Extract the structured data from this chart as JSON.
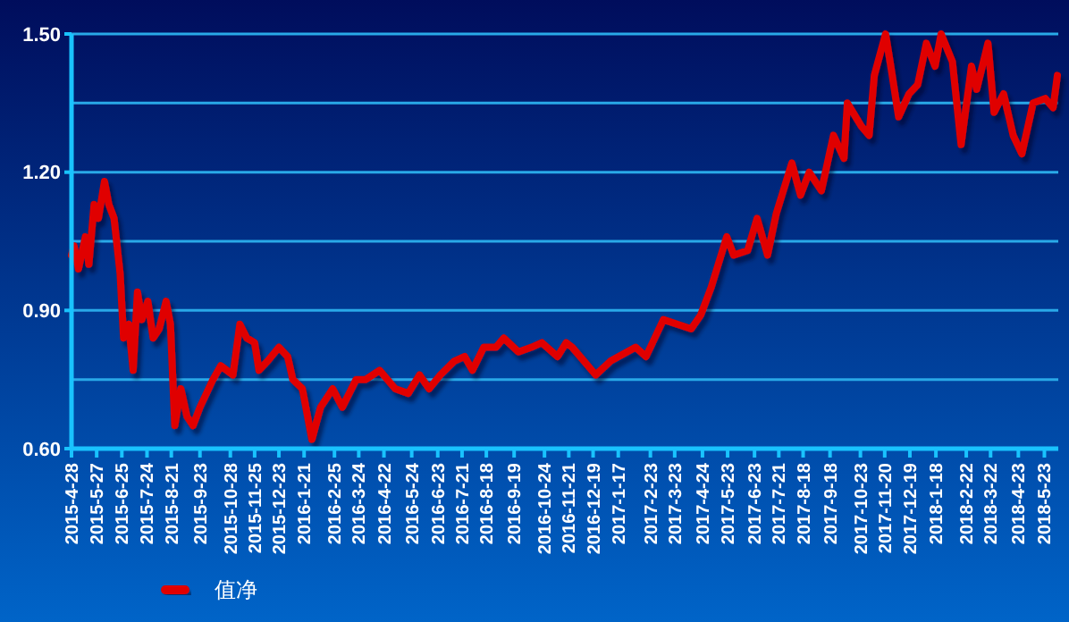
{
  "chart_data": {
    "type": "line",
    "legend": "bottom left",
    "grid": "y",
    "line_style": "solid",
    "marker": "none",
    "xlim": [
      "2015-04-28",
      "2018-06-08"
    ],
    "ylim": [
      0.6,
      1.5
    ],
    "yticks": [
      {
        "value": 0.6,
        "label": "0.60"
      },
      {
        "value": 0.75,
        "label": null
      },
      {
        "value": 0.9,
        "label": "0.90"
      },
      {
        "value": 1.05,
        "label": null
      },
      {
        "value": 1.2,
        "label": "1.20"
      },
      {
        "value": 1.35,
        "label": null
      },
      {
        "value": 1.5,
        "label": "1.50"
      }
    ],
    "xticks": [
      {
        "value": "2015-04-28",
        "label": "2015-4-28"
      },
      {
        "value": "2015-05-27",
        "label": "2015-5-27"
      },
      {
        "value": "2015-06-25",
        "label": "2015-6-25"
      },
      {
        "value": "2015-07-24",
        "label": "2015-7-24"
      },
      {
        "value": "2015-08-21",
        "label": "2015-8-21"
      },
      {
        "value": "2015-09-23",
        "label": "2015-9-23"
      },
      {
        "value": "2015-10-28",
        "label": "2015-10-28"
      },
      {
        "value": "2015-11-25",
        "label": "2015-11-25"
      },
      {
        "value": "2015-12-23",
        "label": "2015-12-23"
      },
      {
        "value": "2016-01-21",
        "label": "2016-1-21"
      },
      {
        "value": "2016-02-25",
        "label": "2016-2-25"
      },
      {
        "value": "2016-03-24",
        "label": "2016-3-24"
      },
      {
        "value": "2016-04-22",
        "label": "2016-4-22"
      },
      {
        "value": "2016-05-24",
        "label": "2016-5-24"
      },
      {
        "value": "2016-06-23",
        "label": "2016-6-23"
      },
      {
        "value": "2016-07-21",
        "label": "2016-7-21"
      },
      {
        "value": "2016-08-18",
        "label": "2016-8-18"
      },
      {
        "value": "2016-09-19",
        "label": "2016-9-19"
      },
      {
        "value": "2016-10-24",
        "label": "2016-10-24"
      },
      {
        "value": "2016-11-21",
        "label": "2016-11-21"
      },
      {
        "value": "2016-12-19",
        "label": "2016-12-19"
      },
      {
        "value": "2017-01-17",
        "label": "2017-1-17"
      },
      {
        "value": "2017-02-23",
        "label": "2017-2-23"
      },
      {
        "value": "2017-03-23",
        "label": "2017-3-23"
      },
      {
        "value": "2017-04-24",
        "label": "2017-4-24"
      },
      {
        "value": "2017-05-23",
        "label": "2017-5-23"
      },
      {
        "value": "2017-06-23",
        "label": "2017-6-23"
      },
      {
        "value": "2017-07-21",
        "label": "2017-7-21"
      },
      {
        "value": "2017-08-18",
        "label": "2017-8-18"
      },
      {
        "value": "2017-09-18",
        "label": "2017-9-18"
      },
      {
        "value": "2017-10-23",
        "label": "2017-10-23"
      },
      {
        "value": "2017-11-20",
        "label": "2017-11-20"
      },
      {
        "value": "2017-12-19",
        "label": "2017-12-19"
      },
      {
        "value": "2018-01-18",
        "label": "2018-1-18"
      },
      {
        "value": "2018-02-22",
        "label": "2018-2-22"
      },
      {
        "value": "2018-03-22",
        "label": "2018-3-22"
      },
      {
        "value": "2018-04-23",
        "label": "2018-4-23"
      },
      {
        "value": "2018-05-23",
        "label": "2018-5-23"
      }
    ],
    "x": [
      "2015-04-28",
      "2015-05-01",
      "2015-05-06",
      "2015-05-14",
      "2015-05-18",
      "2015-05-24",
      "2015-05-29",
      "2015-06-05",
      "2015-06-10",
      "2015-06-16",
      "2015-06-23",
      "2015-06-27",
      "2015-07-03",
      "2015-07-08",
      "2015-07-13",
      "2015-07-18",
      "2015-07-25",
      "2015-07-31",
      "2015-08-07",
      "2015-08-15",
      "2015-08-20",
      "2015-08-25",
      "2015-09-01",
      "2015-09-08",
      "2015-09-15",
      "2015-09-23",
      "2015-10-08",
      "2015-10-17",
      "2015-10-31",
      "2015-11-08",
      "2015-11-16",
      "2015-11-25",
      "2015-11-30",
      "2015-12-10",
      "2015-12-23",
      "2016-01-02",
      "2016-01-08",
      "2016-01-19",
      "2016-01-30",
      "2016-02-09",
      "2016-02-23",
      "2016-03-05",
      "2016-03-21",
      "2016-04-01",
      "2016-04-17",
      "2016-05-05",
      "2016-05-20",
      "2016-06-02",
      "2016-06-13",
      "2016-06-26",
      "2016-07-12",
      "2016-07-24",
      "2016-08-02",
      "2016-08-15",
      "2016-08-29",
      "2016-09-07",
      "2016-09-24",
      "2016-10-09",
      "2016-10-21",
      "2016-11-08",
      "2016-11-18",
      "2016-11-25",
      "2016-12-22",
      "2017-01-08",
      "2017-02-06",
      "2017-02-18",
      "2017-03-10",
      "2017-04-11",
      "2017-04-22",
      "2017-05-04",
      "2017-05-22",
      "2017-05-30",
      "2017-06-15",
      "2017-06-26",
      "2017-07-08",
      "2017-07-18",
      "2017-08-05",
      "2017-08-15",
      "2017-08-25",
      "2017-09-08",
      "2017-09-22",
      "2017-10-04",
      "2017-10-08",
      "2017-10-24",
      "2017-11-02",
      "2017-11-08",
      "2017-11-21",
      "2017-11-27",
      "2017-12-06",
      "2017-12-18",
      "2017-12-28",
      "2018-01-07",
      "2018-01-17",
      "2018-01-24",
      "2018-02-06",
      "2018-02-16",
      "2018-02-28",
      "2018-03-06",
      "2018-03-19",
      "2018-03-26",
      "2018-04-06",
      "2018-04-17",
      "2018-04-27",
      "2018-05-10",
      "2018-05-24",
      "2018-06-02",
      "2018-06-07"
    ],
    "series": [
      {
        "name": "值净",
        "color": "#e00000",
        "values": [
          1.02,
          1.04,
          0.99,
          1.06,
          1.0,
          1.13,
          1.1,
          1.18,
          1.13,
          1.1,
          0.98,
          0.84,
          0.87,
          0.77,
          0.94,
          0.88,
          0.92,
          0.84,
          0.86,
          0.92,
          0.87,
          0.65,
          0.73,
          0.67,
          0.65,
          0.69,
          0.75,
          0.78,
          0.76,
          0.87,
          0.84,
          0.83,
          0.77,
          0.79,
          0.82,
          0.8,
          0.75,
          0.73,
          0.62,
          0.69,
          0.73,
          0.69,
          0.75,
          0.75,
          0.77,
          0.73,
          0.72,
          0.76,
          0.73,
          0.76,
          0.79,
          0.8,
          0.77,
          0.82,
          0.82,
          0.84,
          0.81,
          0.82,
          0.83,
          0.8,
          0.83,
          0.82,
          0.76,
          0.79,
          0.82,
          0.8,
          0.88,
          0.86,
          0.89,
          0.95,
          1.06,
          1.02,
          1.03,
          1.1,
          1.02,
          1.11,
          1.22,
          1.15,
          1.2,
          1.16,
          1.28,
          1.23,
          1.35,
          1.3,
          1.28,
          1.41,
          1.5,
          1.43,
          1.32,
          1.37,
          1.39,
          1.48,
          1.43,
          1.5,
          1.44,
          1.26,
          1.43,
          1.38,
          1.48,
          1.33,
          1.37,
          1.28,
          1.24,
          1.35,
          1.36,
          1.34,
          1.41
        ]
      }
    ]
  }
}
